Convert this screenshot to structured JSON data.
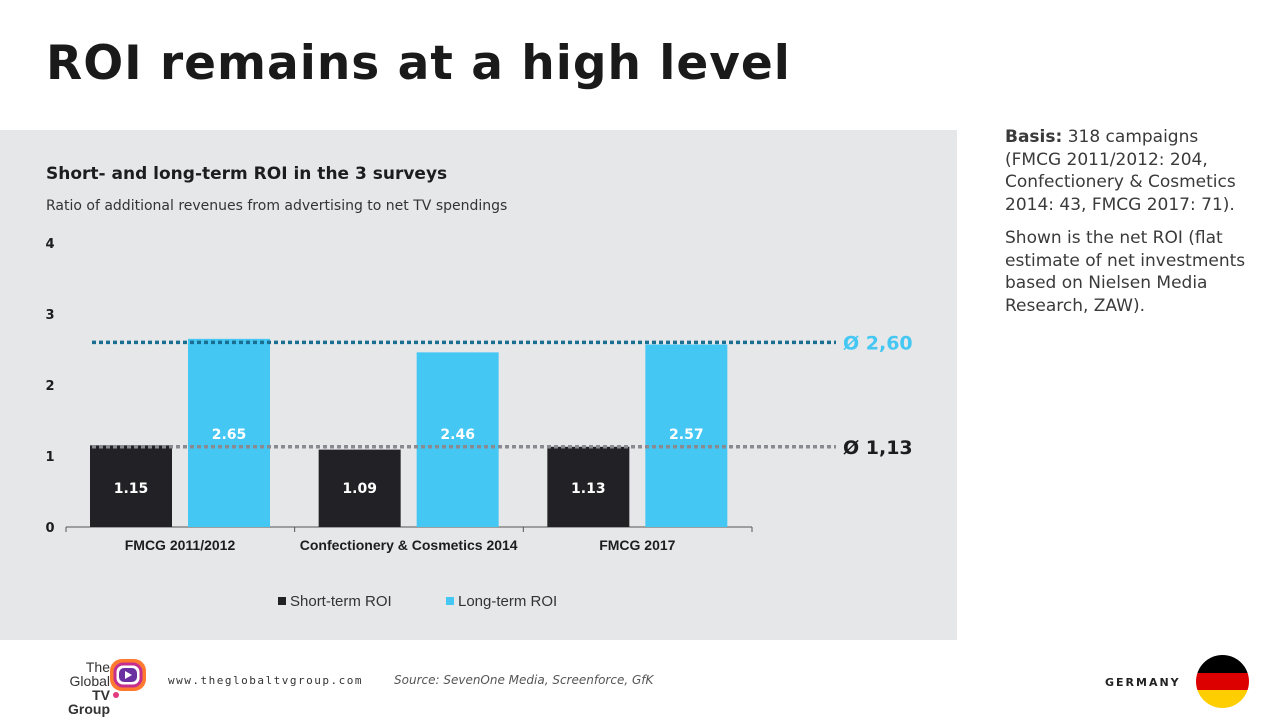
{
  "page": {
    "title": "ROI remains at a high level"
  },
  "chart_data": {
    "type": "bar",
    "title": "Short- and long-term ROI in the 3 surveys",
    "subtitle": "Ratio of additional revenues from advertising to net TV spendings",
    "categories": [
      "FMCG 2011/2012",
      "Confectionery & Cosmetics 2014",
      "FMCG 2017"
    ],
    "series": [
      {
        "name": "Short-term ROI",
        "values": [
          1.15,
          1.09,
          1.13
        ],
        "labels": [
          "1.15",
          "1.09",
          "1.13"
        ],
        "color": "#222226"
      },
      {
        "name": "Long-term ROI",
        "values": [
          2.65,
          2.46,
          2.57
        ],
        "labels": [
          "2.65",
          "2.46",
          "2.57"
        ],
        "color": "#45c7f3"
      }
    ],
    "ylim": [
      0,
      4
    ],
    "yticks": [
      0,
      1,
      2,
      3,
      4
    ],
    "grid": false,
    "legend": "bottom",
    "reference_lines": [
      {
        "value": 2.6,
        "label": "Ø 2,60",
        "color": "#1a6e92",
        "label_color": "#45c7f3"
      },
      {
        "value": 1.13,
        "label": "Ø 1,13",
        "color": "#8a8b90",
        "label_color": "#1d1d20"
      }
    ]
  },
  "sidebar": {
    "basis_label": "Basis:",
    "basis_text": " 318 campaigns (FMCG 2011/2012: 204, Confectionery & Cosmetics 2014: 43, FMCG 2017: 71).",
    "note": "Shown is the net ROI (flat estimate of net investments based on Nielsen Media Research, ZAW)."
  },
  "footer": {
    "logo_line1": "The",
    "logo_line2": "Global",
    "logo_line3": "TV Group",
    "url": "www.theglobaltvgroup.com",
    "source": "Source: SevenOne Media, Screenforce, GfK",
    "country": "GERMANY",
    "flag_colors": [
      "#000000",
      "#dd0000",
      "#ffce00"
    ]
  }
}
